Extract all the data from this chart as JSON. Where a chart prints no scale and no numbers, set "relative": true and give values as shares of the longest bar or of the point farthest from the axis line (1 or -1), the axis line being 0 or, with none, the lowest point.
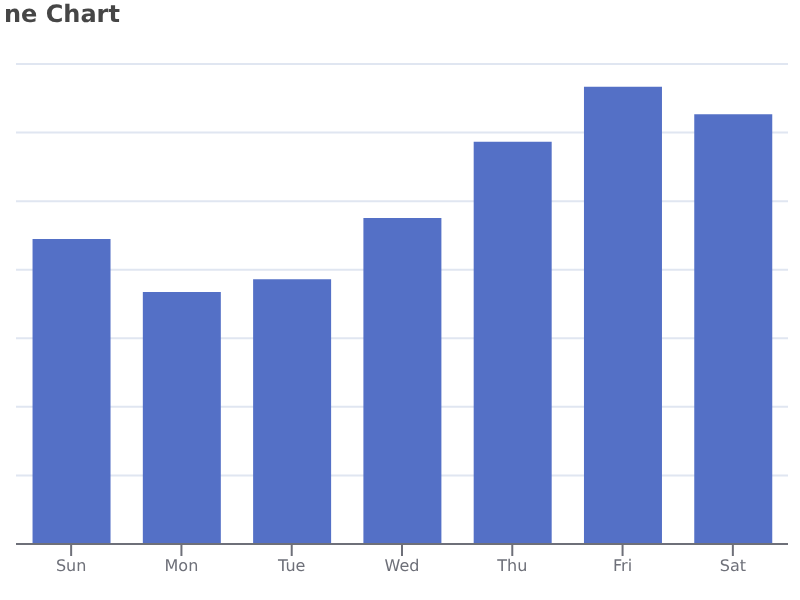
{
  "chart_data": {
    "type": "bar",
    "title": "ne Chart",
    "categories": [
      "Sun",
      "Mon",
      "Tue",
      "Wed",
      "Thu",
      "Fri",
      "Sat"
    ],
    "values": [
      0.667,
      0.551,
      0.579,
      0.713,
      0.88,
      1,
      0.94
    ],
    "color": "#5470c6",
    "relative": true,
    "grid": "y"
  }
}
